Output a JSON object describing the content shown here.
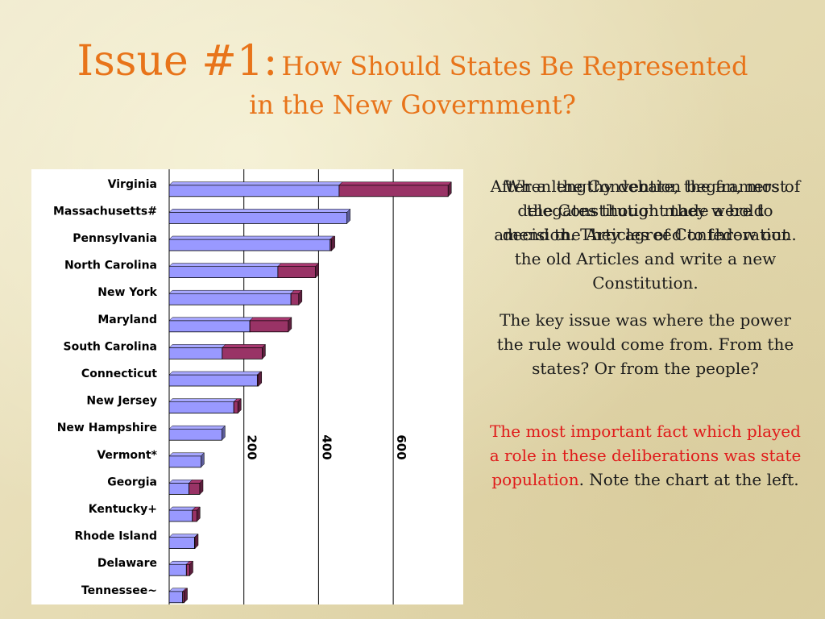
{
  "title": {
    "issue": "Issue #1:",
    "question_line1": "How Should States Be Represented",
    "question_line2": "in the New Government?"
  },
  "text": {
    "overlap_text": "When the Convention began, most delegates thought they were to amend the Articles of Confederation.",
    "para1": "After a lengthy debate, the framers of the Constitution made a bold decision. They agreed to throw out the old Articles and write a new Constitution.",
    "para2": "The key issue was where the power the rule would come from.  From the states?  Or from the people?",
    "para3_red": "The most important fact which played a role in these deliberations was state population",
    "para3_rest": ".  Note the chart at the left."
  },
  "colors": {
    "title": "#e8741a",
    "free_population": "#9999ff",
    "enslaved_population": "#993366",
    "red_text": "#e01a1a"
  },
  "chart_data": {
    "type": "bar",
    "orientation": "horizontal",
    "stacked": true,
    "categories": [
      "Virginia",
      "Massachusetts#",
      "Pennsylvania",
      "North Carolina",
      "New York",
      "Maryland",
      "South Carolina",
      "Connecticut",
      "New Jersey",
      "New Hampshire",
      "Vermont*",
      "Georgia",
      "Kentucky+",
      "Rhode Island",
      "Delaware",
      "Tennessee~"
    ],
    "series": [
      {
        "values": [
          455,
          476,
          431,
          291,
          326,
          216,
          142,
          236,
          173,
          141,
          85,
          53,
          62,
          68,
          46,
          36
        ]
      },
      {
        "values": [
          292,
          0,
          4,
          101,
          21,
          103,
          107,
          3,
          11,
          0,
          0,
          29,
          12,
          1,
          9,
          4
        ]
      }
    ],
    "xlim": [
      0,
      800
    ],
    "ticks": [
      200,
      400,
      600
    ],
    "tick_labels": [
      "200",
      "400",
      "600"
    ],
    "grid": true,
    "legend": "none"
  }
}
